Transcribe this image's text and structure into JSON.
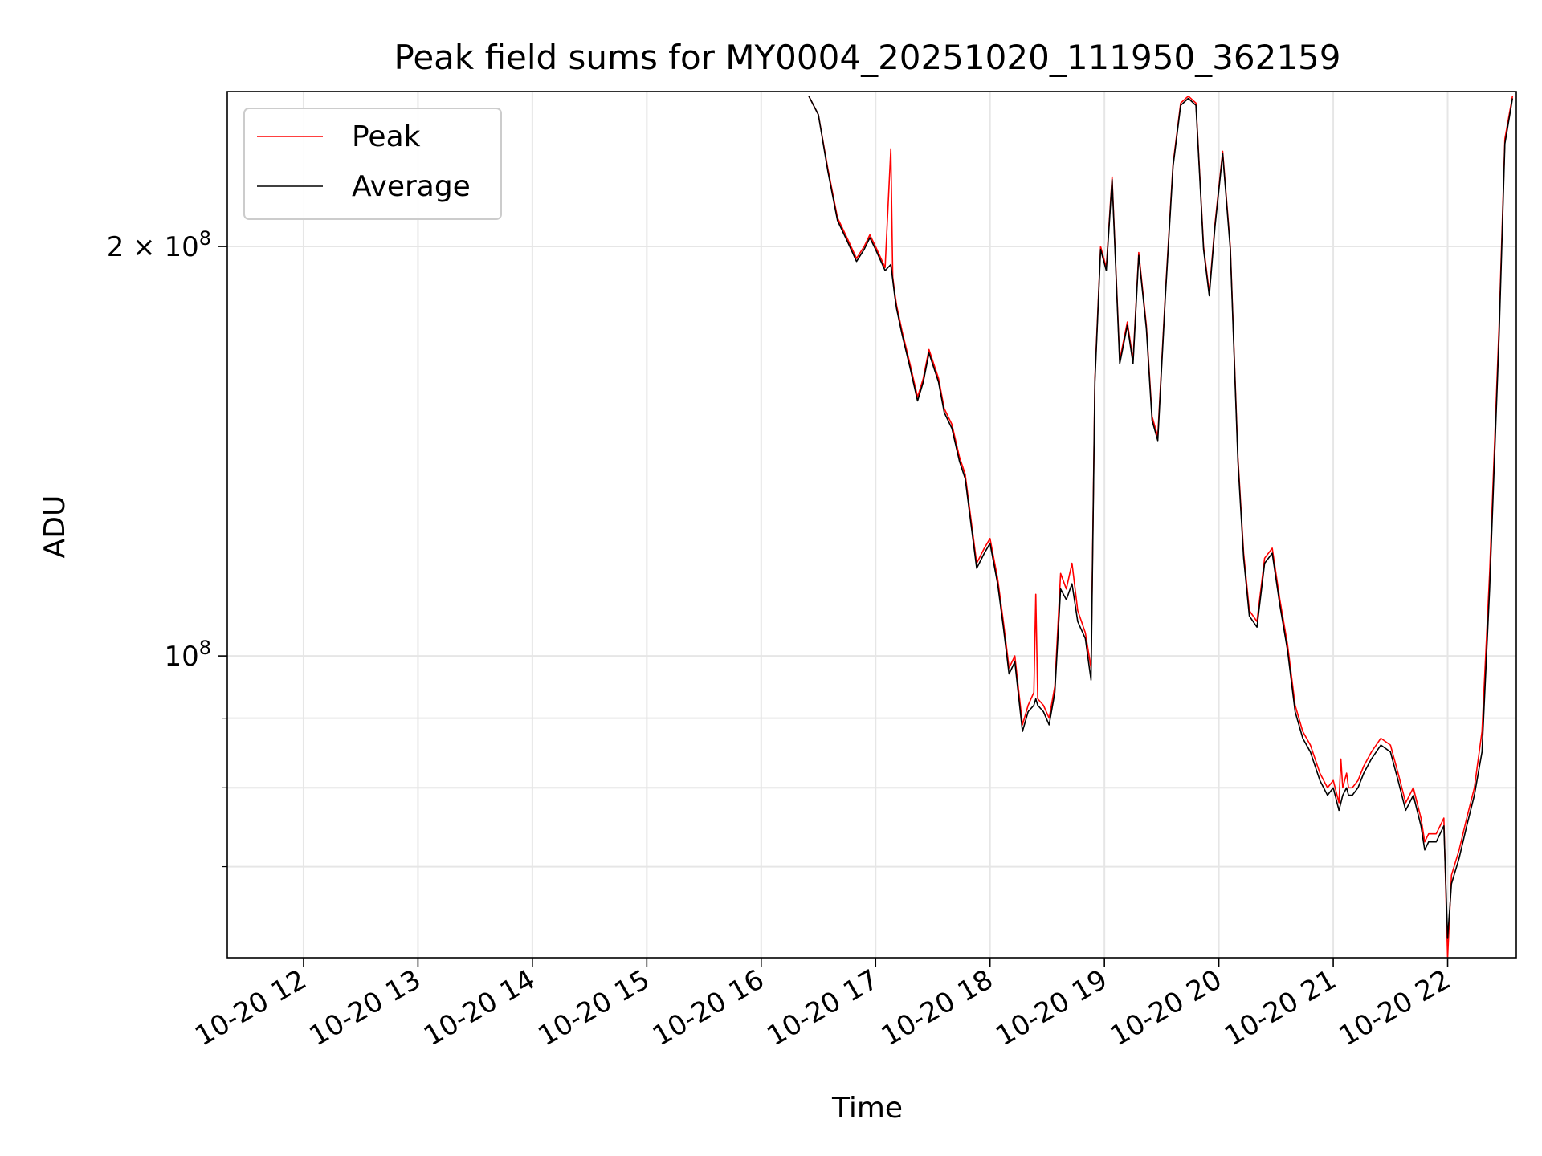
{
  "chart_data": {
    "type": "line",
    "title": "Peak field sums for MY0004_20251020_111950_362159",
    "xlabel": "Time",
    "ylabel": "ADU",
    "y_scale": "log",
    "ylim": [
      60000000,
      260000000
    ],
    "xlim": [
      "2025-10-20 11:20",
      "2025-10-20 22:36"
    ],
    "grid": true,
    "legend_position": "top-left",
    "x_tick_labels": [
      "10-20 12",
      "10-20 13",
      "10-20 14",
      "10-20 15",
      "10-20 16",
      "10-20 17",
      "10-20 18",
      "10-20 19",
      "10-20 20",
      "10-20 21",
      "10-20 22"
    ],
    "x_tick_values": [
      "2025-10-20 12:00",
      "2025-10-20 13:00",
      "2025-10-20 14:00",
      "2025-10-20 15:00",
      "2025-10-20 16:00",
      "2025-10-20 17:00",
      "2025-10-20 18:00",
      "2025-10-20 19:00",
      "2025-10-20 20:00",
      "2025-10-20 21:00",
      "2025-10-20 22:00"
    ],
    "y_major_ticks": [
      {
        "value": 100000000,
        "mantissa": "",
        "exponent": "8"
      },
      {
        "value": 200000000,
        "mantissa": "2",
        "exponent": "8"
      }
    ],
    "y_minor_ticks": [
      70000000,
      80000000,
      90000000
    ],
    "series": [
      {
        "name": "Peak",
        "color": "#ff0000",
        "x": [
          "2025-10-20 16:25",
          "2025-10-20 16:30",
          "2025-10-20 16:35",
          "2025-10-20 16:40",
          "2025-10-20 16:45",
          "2025-10-20 16:50",
          "2025-10-20 16:54",
          "2025-10-20 16:57",
          "2025-10-20 17:00",
          "2025-10-20 17:05",
          "2025-10-20 17:08",
          "2025-10-20 17:09",
          "2025-10-20 17:10",
          "2025-10-20 17:11",
          "2025-10-20 17:14",
          "2025-10-20 17:18",
          "2025-10-20 17:22",
          "2025-10-20 17:25",
          "2025-10-20 17:28",
          "2025-10-20 17:33",
          "2025-10-20 17:36",
          "2025-10-20 17:40",
          "2025-10-20 17:44",
          "2025-10-20 17:47",
          "2025-10-20 17:50",
          "2025-10-20 17:53",
          "2025-10-20 17:57",
          "2025-10-20 18:00",
          "2025-10-20 18:04",
          "2025-10-20 18:07",
          "2025-10-20 18:10",
          "2025-10-20 18:13",
          "2025-10-20 18:17",
          "2025-10-20 18:20",
          "2025-10-20 18:23",
          "2025-10-20 18:24",
          "2025-10-20 18:25",
          "2025-10-20 18:28",
          "2025-10-20 18:31",
          "2025-10-20 18:34",
          "2025-10-20 18:37",
          "2025-10-20 18:40",
          "2025-10-20 18:43",
          "2025-10-20 18:46",
          "2025-10-20 18:50",
          "2025-10-20 18:53",
          "2025-10-20 18:55",
          "2025-10-20 18:58",
          "2025-10-20 19:01",
          "2025-10-20 19:04",
          "2025-10-20 19:08",
          "2025-10-20 19:12",
          "2025-10-20 19:15",
          "2025-10-20 19:18",
          "2025-10-20 19:22",
          "2025-10-20 19:25",
          "2025-10-20 19:28",
          "2025-10-20 19:32",
          "2025-10-20 19:36",
          "2025-10-20 19:40",
          "2025-10-20 19:44",
          "2025-10-20 19:48",
          "2025-10-20 19:52",
          "2025-10-20 19:55",
          "2025-10-20 19:58",
          "2025-10-20 20:02",
          "2025-10-20 20:06",
          "2025-10-20 20:10",
          "2025-10-20 20:13",
          "2025-10-20 20:16",
          "2025-10-20 20:20",
          "2025-10-20 20:24",
          "2025-10-20 20:28",
          "2025-10-20 20:32",
          "2025-10-20 20:36",
          "2025-10-20 20:40",
          "2025-10-20 20:44",
          "2025-10-20 20:48",
          "2025-10-20 20:53",
          "2025-10-20 20:57",
          "2025-10-20 21:00",
          "2025-10-20 21:03",
          "2025-10-20 21:04",
          "2025-10-20 21:05",
          "2025-10-20 21:07",
          "2025-10-20 21:08",
          "2025-10-20 21:10",
          "2025-10-20 21:13",
          "2025-10-20 21:16",
          "2025-10-20 21:20",
          "2025-10-20 21:25",
          "2025-10-20 21:30",
          "2025-10-20 21:34",
          "2025-10-20 21:38",
          "2025-10-20 21:42",
          "2025-10-20 21:46",
          "2025-10-20 21:48",
          "2025-10-20 21:50",
          "2025-10-20 21:54",
          "2025-10-20 21:58",
          "2025-10-20 22:00",
          "2025-10-20 22:02",
          "2025-10-20 22:06",
          "2025-10-20 22:10",
          "2025-10-20 22:14",
          "2025-10-20 22:18",
          "2025-10-20 22:22",
          "2025-10-20 22:27",
          "2025-10-20 22:30",
          "2025-10-20 22:34"
        ],
        "y": [
          258000000,
          250000000,
          228000000,
          210000000,
          203000000,
          196000000,
          200000000,
          204000000,
          200000000,
          193000000,
          236000000,
          190000000,
          185000000,
          181000000,
          173000000,
          164000000,
          155000000,
          160000000,
          168000000,
          160000000,
          152000000,
          148000000,
          140000000,
          136000000,
          126000000,
          117000000,
          120000000,
          122000000,
          114000000,
          106000000,
          98000000,
          100000000,
          89000000,
          92000000,
          94000000,
          111000000,
          93000000,
          92000000,
          90000000,
          95000000,
          115000000,
          112000000,
          117000000,
          108000000,
          104000000,
          98000000,
          160000000,
          200000000,
          193000000,
          225000000,
          165000000,
          176000000,
          165000000,
          198000000,
          175000000,
          150000000,
          145000000,
          185000000,
          230000000,
          255000000,
          258000000,
          255000000,
          200000000,
          185000000,
          208000000,
          235000000,
          200000000,
          140000000,
          119000000,
          108000000,
          106000000,
          118000000,
          120000000,
          110000000,
          102000000,
          92000000,
          88000000,
          86000000,
          82000000,
          80000000,
          81000000,
          78000000,
          84000000,
          80000000,
          82000000,
          80000000,
          80000000,
          81000000,
          83000000,
          85000000,
          87000000,
          86000000,
          82000000,
          78000000,
          80000000,
          76000000,
          73000000,
          74000000,
          74000000,
          76000000,
          60000000,
          69000000,
          72000000,
          76000000,
          80000000,
          88000000,
          115000000,
          175000000,
          240000000,
          258000000
        ],
        "values_note": ""
      },
      {
        "name": "Average",
        "color": "#000000",
        "x": [
          "2025-10-20 16:25",
          "2025-10-20 16:30",
          "2025-10-20 16:35",
          "2025-10-20 16:40",
          "2025-10-20 16:45",
          "2025-10-20 16:50",
          "2025-10-20 16:54",
          "2025-10-20 16:57",
          "2025-10-20 17:00",
          "2025-10-20 17:05",
          "2025-10-20 17:08",
          "2025-10-20 17:09",
          "2025-10-20 17:10",
          "2025-10-20 17:11",
          "2025-10-20 17:14",
          "2025-10-20 17:18",
          "2025-10-20 17:22",
          "2025-10-20 17:25",
          "2025-10-20 17:28",
          "2025-10-20 17:33",
          "2025-10-20 17:36",
          "2025-10-20 17:40",
          "2025-10-20 17:44",
          "2025-10-20 17:47",
          "2025-10-20 17:50",
          "2025-10-20 17:53",
          "2025-10-20 17:57",
          "2025-10-20 18:00",
          "2025-10-20 18:04",
          "2025-10-20 18:07",
          "2025-10-20 18:10",
          "2025-10-20 18:13",
          "2025-10-20 18:17",
          "2025-10-20 18:20",
          "2025-10-20 18:23",
          "2025-10-20 18:24",
          "2025-10-20 18:25",
          "2025-10-20 18:28",
          "2025-10-20 18:31",
          "2025-10-20 18:34",
          "2025-10-20 18:37",
          "2025-10-20 18:40",
          "2025-10-20 18:43",
          "2025-10-20 18:46",
          "2025-10-20 18:50",
          "2025-10-20 18:53",
          "2025-10-20 18:55",
          "2025-10-20 18:58",
          "2025-10-20 19:01",
          "2025-10-20 19:04",
          "2025-10-20 19:08",
          "2025-10-20 19:12",
          "2025-10-20 19:15",
          "2025-10-20 19:18",
          "2025-10-20 19:22",
          "2025-10-20 19:25",
          "2025-10-20 19:28",
          "2025-10-20 19:32",
          "2025-10-20 19:36",
          "2025-10-20 19:40",
          "2025-10-20 19:44",
          "2025-10-20 19:48",
          "2025-10-20 19:52",
          "2025-10-20 19:55",
          "2025-10-20 19:58",
          "2025-10-20 20:02",
          "2025-10-20 20:06",
          "2025-10-20 20:10",
          "2025-10-20 20:13",
          "2025-10-20 20:16",
          "2025-10-20 20:20",
          "2025-10-20 20:24",
          "2025-10-20 20:28",
          "2025-10-20 20:32",
          "2025-10-20 20:36",
          "2025-10-20 20:40",
          "2025-10-20 20:44",
          "2025-10-20 20:48",
          "2025-10-20 20:53",
          "2025-10-20 20:57",
          "2025-10-20 21:00",
          "2025-10-20 21:03",
          "2025-10-20 21:04",
          "2025-10-20 21:05",
          "2025-10-20 21:07",
          "2025-10-20 21:08",
          "2025-10-20 21:10",
          "2025-10-20 21:13",
          "2025-10-20 21:16",
          "2025-10-20 21:20",
          "2025-10-20 21:25",
          "2025-10-20 21:30",
          "2025-10-20 21:34",
          "2025-10-20 21:38",
          "2025-10-20 21:42",
          "2025-10-20 21:46",
          "2025-10-20 21:48",
          "2025-10-20 21:50",
          "2025-10-20 21:54",
          "2025-10-20 21:58",
          "2025-10-20 22:00",
          "2025-10-20 22:02",
          "2025-10-20 22:06",
          "2025-10-20 22:10",
          "2025-10-20 22:14",
          "2025-10-20 22:18",
          "2025-10-20 22:22",
          "2025-10-20 22:27",
          "2025-10-20 22:30",
          "2025-10-20 22:34"
        ],
        "y": [
          258000000,
          250000000,
          227000000,
          209000000,
          202000000,
          195000000,
          199000000,
          203000000,
          199000000,
          192000000,
          194000000,
          189000000,
          184000000,
          180000000,
          172000000,
          163000000,
          154000000,
          159000000,
          167000000,
          159000000,
          151000000,
          147000000,
          139000000,
          135000000,
          125000000,
          116000000,
          119000000,
          121000000,
          113000000,
          105000000,
          97000000,
          99000000,
          88000000,
          91000000,
          92000000,
          93000000,
          92000000,
          91000000,
          89000000,
          94000000,
          112000000,
          110000000,
          113000000,
          106000000,
          103000000,
          96000000,
          159000000,
          199000000,
          192000000,
          224000000,
          164000000,
          175000000,
          164000000,
          197000000,
          174000000,
          149000000,
          144000000,
          184000000,
          229000000,
          254000000,
          257000000,
          254000000,
          199000000,
          184000000,
          207000000,
          234000000,
          199000000,
          139000000,
          118000000,
          107000000,
          105000000,
          117000000,
          119000000,
          109000000,
          101000000,
          91000000,
          87000000,
          85000000,
          81000000,
          79000000,
          80000000,
          77000000,
          78000000,
          79000000,
          80000000,
          79000000,
          79000000,
          80000000,
          82000000,
          84000000,
          86000000,
          85000000,
          81000000,
          77000000,
          79000000,
          75000000,
          72000000,
          73000000,
          73000000,
          75000000,
          62000000,
          68000000,
          71000000,
          75000000,
          79000000,
          85000000,
          112000000,
          172000000,
          238000000,
          257000000
        ],
        "values_note": ""
      }
    ]
  }
}
